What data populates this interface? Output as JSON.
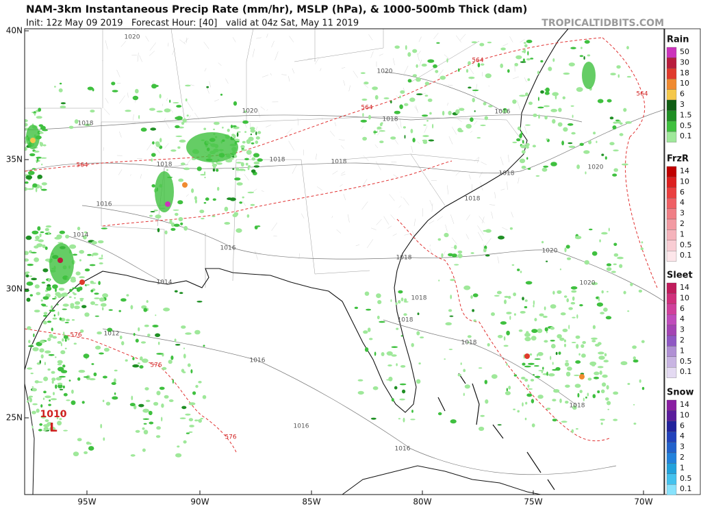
{
  "header": {
    "title": "NAM-3km Instantaneous Precip Rate (mm/hr), MSLP (hPa), & 1000-500mb Thick (dam)",
    "subtitle": "Init: 12z May 09 2019   Forecast Hour: [40]   valid at 04z Sat, May 11 2019",
    "brand": "TROPICALTIDBITS.COM"
  },
  "map": {
    "lat_labels": [
      "40N",
      "35N",
      "30N",
      "25N"
    ],
    "lon_labels": [
      "95W",
      "90W",
      "85W",
      "80W",
      "75W",
      "70W"
    ],
    "isobar_labels": [
      1020,
      1020,
      1020,
      1020,
      1020,
      1020,
      1018,
      1018,
      1018,
      1018,
      1018,
      1018,
      1018,
      1018,
      1018,
      1018,
      1018,
      1018,
      1016,
      1016,
      1016,
      1016,
      1016,
      1016,
      1014,
      1014,
      1012
    ],
    "thickness_labels": [
      564,
      564,
      564,
      564,
      576,
      576,
      576
    ],
    "low": {
      "pressure": 1010,
      "letter": "L"
    }
  },
  "legend": [
    {
      "title": "Rain",
      "labels": [
        50,
        30,
        18,
        10,
        6,
        3,
        1.5,
        0.5,
        0.1
      ],
      "colors": [
        "#cc33bb",
        "#b81c3c",
        "#e03a2c",
        "#f08a30",
        "#f5c84a",
        "#0f5e14",
        "#1f8f24",
        "#3fc03f",
        "#9fe89a"
      ]
    },
    {
      "title": "FrzR",
      "labels": [
        14,
        10,
        6,
        4,
        3,
        2,
        1,
        0.5,
        0.1
      ],
      "colors": [
        "#c00000",
        "#dd1f1f",
        "#ea3f3f",
        "#ef5f64",
        "#f07f86",
        "#f29aa2",
        "#f5b3bb",
        "#f9cdd4",
        "#fde6ea"
      ]
    },
    {
      "title": "Sleet",
      "labels": [
        14,
        10,
        6,
        4,
        3,
        2,
        1,
        0.5,
        0.1
      ],
      "colors": [
        "#c01c5c",
        "#d0307c",
        "#d0409c",
        "#c04cbc",
        "#a444b4",
        "#9058c4",
        "#b090d4",
        "#c8b4e2",
        "#e4daf2"
      ]
    },
    {
      "title": "Snow",
      "labels": [
        14,
        10,
        6,
        4,
        3,
        2,
        1,
        0.5,
        0.1
      ],
      "colors": [
        "#8a1ea2",
        "#5a1c9c",
        "#22229c",
        "#2242bc",
        "#2262cc",
        "#2282dc",
        "#22a2dc",
        "#44c2ee",
        "#88e2fc"
      ]
    }
  ]
}
